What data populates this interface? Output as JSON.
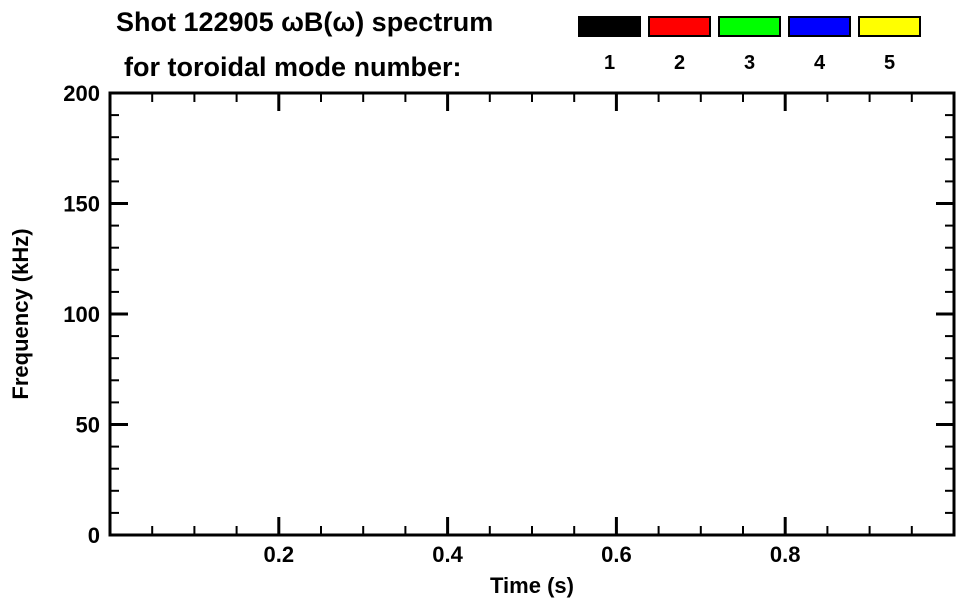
{
  "header": {
    "title_line1": "Shot 122905 ωB(ω) spectrum",
    "title_line2": "for toroidal mode number:"
  },
  "legend": {
    "items": [
      {
        "label": "1",
        "color": "#000000"
      },
      {
        "label": "2",
        "color": "#ff0000"
      },
      {
        "label": "3",
        "color": "#00ff00"
      },
      {
        "label": "4",
        "color": "#0000ff"
      },
      {
        "label": "5",
        "color": "#ffff00"
      }
    ]
  },
  "chart_data": {
    "type": "scatter",
    "title": "Shot 122905 ωB(ω) spectrum",
    "subtitle": "for toroidal mode number: 1 2 3 4 5",
    "xlabel": "Time (s)",
    "ylabel": "Frequency (kHz)",
    "xlim": [
      0.0,
      1.0
    ],
    "ylim": [
      0,
      200
    ],
    "x_ticks": [
      0.2,
      0.4,
      0.6,
      0.8
    ],
    "x_tick_labels": [
      "0.2",
      "0.4",
      "0.6",
      "0.8"
    ],
    "x_major_spacing": 0.2,
    "x_minor_divisions": 4,
    "y_ticks": [
      0,
      50,
      100,
      150,
      200
    ],
    "y_tick_labels": [
      "0",
      "50",
      "100",
      "150",
      "200"
    ],
    "y_major_spacing": 50,
    "y_minor_divisions": 5,
    "grid": false,
    "legend_position": "top-right-above-plot",
    "axis_color": "#000000",
    "background_color": "#ffffff",
    "series": [
      {
        "name": "1",
        "color": "#000000",
        "points": []
      },
      {
        "name": "2",
        "color": "#ff0000",
        "points": []
      },
      {
        "name": "3",
        "color": "#00ff00",
        "points": []
      },
      {
        "name": "4",
        "color": "#0000ff",
        "points": []
      },
      {
        "name": "5",
        "color": "#ffff00",
        "points": []
      }
    ]
  }
}
